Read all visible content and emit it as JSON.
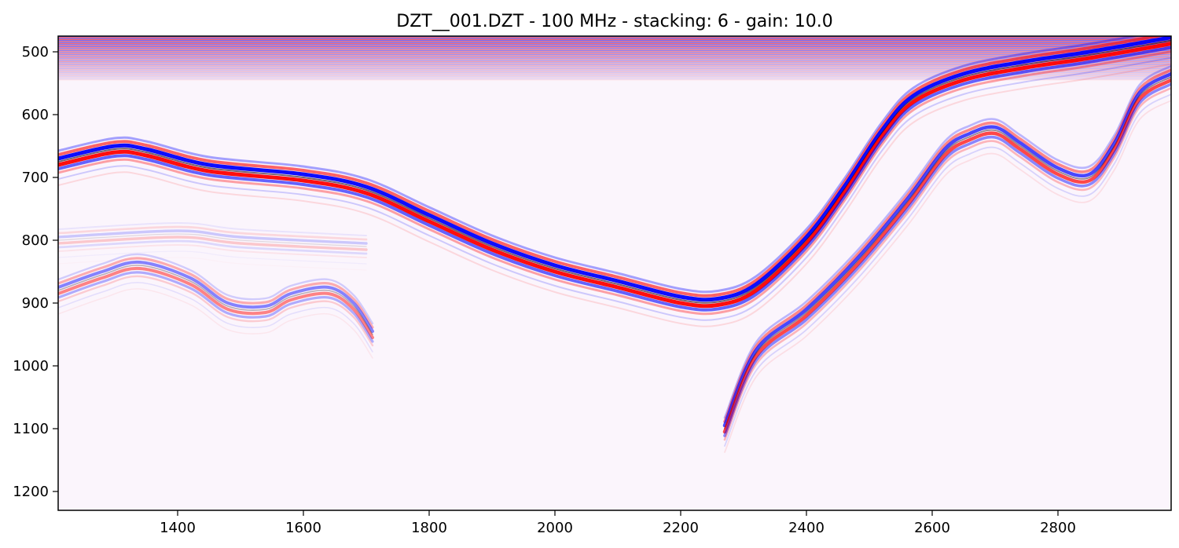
{
  "chart_data": {
    "type": "heatmap",
    "title": "DZT__001.DZT - 100 MHz - stacking: 6 - gain: 10.0",
    "xlabel": "",
    "ylabel": "",
    "xlim": [
      1210,
      2980
    ],
    "ylim": [
      1230,
      475
    ],
    "grid": false,
    "colormap": [
      "#0000ff",
      "#ffffff",
      "#ff0000"
    ],
    "x_ticks": [
      1400,
      1600,
      1800,
      2000,
      2200,
      2400,
      2600,
      2800
    ],
    "y_ticks": [
      500,
      600,
      700,
      800,
      900,
      1000,
      1100,
      1200
    ],
    "reflectors": [
      {
        "name": "primary-surface",
        "strength": 1.0,
        "x": [
          1210,
          1300,
          1350,
          1450,
          1600,
          1700,
          1800,
          1900,
          2000,
          2100,
          2200,
          2260,
          2320,
          2400,
          2460,
          2520,
          2570,
          2650,
          2750,
          2850,
          2980
        ],
        "y": [
          675,
          655,
          660,
          685,
          700,
          720,
          765,
          810,
          845,
          870,
          895,
          898,
          875,
          800,
          720,
          630,
          575,
          540,
          520,
          505,
          482
        ]
      },
      {
        "name": "deep-layer-left",
        "strength": 0.5,
        "x": [
          1210,
          1280,
          1340,
          1420,
          1480,
          1540,
          1580,
          1640,
          1680,
          1710
        ],
        "y": [
          880,
          855,
          840,
          865,
          905,
          910,
          890,
          880,
          905,
          950
        ]
      },
      {
        "name": "lower-diagonal",
        "strength": 0.75,
        "x": [
          2270,
          2320,
          2400,
          2480,
          2560,
          2620,
          2660,
          2700,
          2740,
          2800,
          2850,
          2890,
          2930,
          2980
        ],
        "y": [
          1100,
          980,
          915,
          835,
          740,
          660,
          635,
          625,
          650,
          690,
          700,
          650,
          570,
          540
        ]
      },
      {
        "name": "faint-deep-left",
        "strength": 0.2,
        "x": [
          1210,
          1400,
          1500,
          1700
        ],
        "y": [
          800,
          790,
          800,
          810
        ]
      }
    ],
    "surface_noise_band": [
      475,
      545
    ]
  }
}
